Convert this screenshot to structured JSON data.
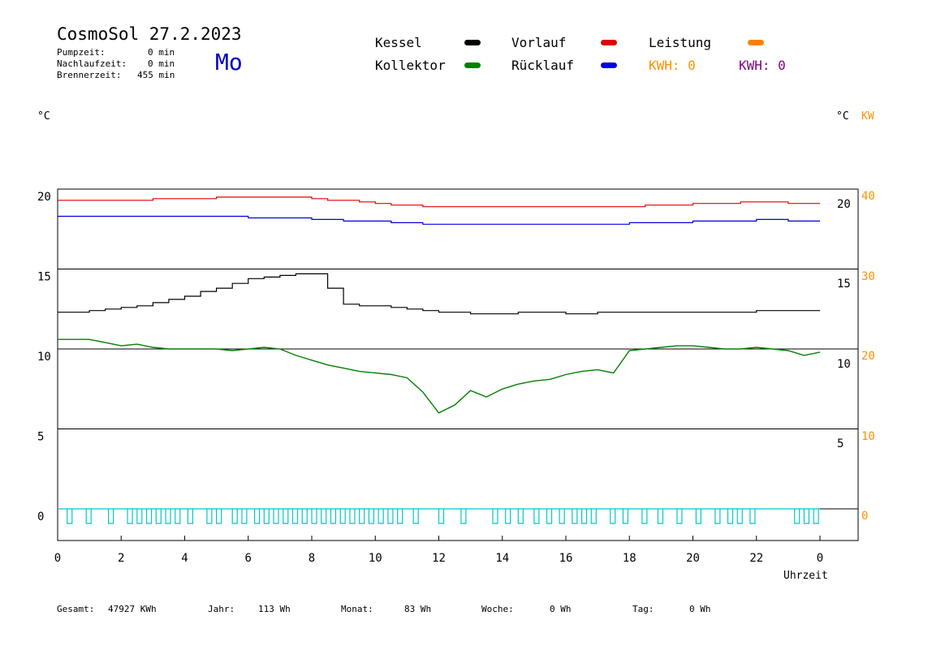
{
  "header": {
    "title": "CosmoSol 27.2.2023",
    "weekday": "Mo",
    "stats": [
      {
        "label": "Pumpzeit:",
        "value": "0 min"
      },
      {
        "label": "Nachlaufzeit:",
        "value": "0 min"
      },
      {
        "label": "Brennerzeit:",
        "value": "455 min"
      }
    ]
  },
  "legend": {
    "kessel": "Kessel",
    "kollektor": "Kollektor",
    "vorlauf": "Vorlauf",
    "ruecklauf": "Rücklauf",
    "leistung": "Leistung",
    "kwh_orange": "KWH: 0",
    "kwh_purple": "KWH: 0"
  },
  "axis_units": {
    "left": "°C",
    "right_c": "°C",
    "right_kw": "KW",
    "x": "Uhrzeit"
  },
  "footer": [
    {
      "label": "Gesamt:",
      "value": "47927 KWh"
    },
    {
      "label": "Jahr:",
      "value": "113 Wh"
    },
    {
      "label": "Monat:",
      "value": "83 Wh"
    },
    {
      "label": "Woche:",
      "value": "0 Wh"
    },
    {
      "label": "Tag:",
      "value": "0 Wh"
    }
  ],
  "colors": {
    "kessel": "#000000",
    "kollektor": "#008000",
    "vorlauf": "#e00000",
    "ruecklauf": "#0000e0",
    "leistung": "#ff8000",
    "kwh_purple": "#800080",
    "pump": "#00c8c8",
    "orange_text": "#ff9000"
  },
  "chart_data": {
    "type": "line",
    "xlabel": "Uhrzeit",
    "ylabel": "°C",
    "x_ticks": [
      "0",
      "2",
      "4",
      "6",
      "8",
      "10",
      "12",
      "14",
      "16",
      "18",
      "20",
      "22",
      "0"
    ],
    "y_left_ticks": [
      "20",
      "15",
      "10",
      "5",
      "0"
    ],
    "y_right_c_ticks": [
      "20",
      "15",
      "10",
      "5"
    ],
    "y_right_kw_ticks": [
      "40",
      "30",
      "20",
      "10",
      "0"
    ],
    "xlim": [
      0,
      24
    ],
    "ylim": [
      -1.5,
      20
    ],
    "grid": true,
    "x": [
      0,
      0.5,
      1,
      1.5,
      2,
      2.5,
      3,
      3.5,
      4,
      4.5,
      5,
      5.5,
      6,
      6.5,
      7,
      7.5,
      8,
      8.5,
      9,
      9.5,
      10,
      10.5,
      11,
      11.5,
      12,
      12.5,
      13,
      13.5,
      14,
      14.5,
      15,
      15.5,
      16,
      16.5,
      17,
      17.5,
      18,
      18.5,
      19,
      19.5,
      20,
      20.5,
      21,
      21.5,
      22,
      22.5,
      23,
      23.5,
      24
    ],
    "series": [
      {
        "name": "Vorlauf",
        "values": [
          19.3,
          19.3,
          19.3,
          19.3,
          19.3,
          19.3,
          19.4,
          19.4,
          19.4,
          19.4,
          19.5,
          19.5,
          19.5,
          19.5,
          19.5,
          19.5,
          19.4,
          19.3,
          19.3,
          19.2,
          19.1,
          19.0,
          19.0,
          18.9,
          18.9,
          18.9,
          18.9,
          18.9,
          18.9,
          18.9,
          18.9,
          18.9,
          18.9,
          18.9,
          18.9,
          18.9,
          18.9,
          19.0,
          19.0,
          19.0,
          19.1,
          19.1,
          19.1,
          19.2,
          19.2,
          19.2,
          19.1,
          19.1,
          19.1
        ]
      },
      {
        "name": "Rücklauf",
        "values": [
          18.3,
          18.3,
          18.3,
          18.3,
          18.3,
          18.3,
          18.3,
          18.3,
          18.3,
          18.3,
          18.3,
          18.3,
          18.2,
          18.2,
          18.2,
          18.2,
          18.1,
          18.1,
          18.0,
          18.0,
          18.0,
          17.9,
          17.9,
          17.8,
          17.8,
          17.8,
          17.8,
          17.8,
          17.8,
          17.8,
          17.8,
          17.8,
          17.8,
          17.8,
          17.8,
          17.8,
          17.9,
          17.9,
          17.9,
          17.9,
          18.0,
          18.0,
          18.0,
          18.0,
          18.1,
          18.1,
          18.0,
          18.0,
          18.0
        ]
      },
      {
        "name": "Kessel",
        "values": [
          12.3,
          12.3,
          12.4,
          12.5,
          12.6,
          12.7,
          12.9,
          13.1,
          13.3,
          13.6,
          13.8,
          14.1,
          14.4,
          14.5,
          14.6,
          14.7,
          14.7,
          13.8,
          12.8,
          12.7,
          12.7,
          12.6,
          12.5,
          12.4,
          12.3,
          12.3,
          12.2,
          12.2,
          12.2,
          12.3,
          12.3,
          12.3,
          12.2,
          12.2,
          12.3,
          12.3,
          12.3,
          12.3,
          12.3,
          12.3,
          12.3,
          12.3,
          12.3,
          12.3,
          12.4,
          12.4,
          12.4,
          12.4,
          12.4
        ]
      },
      {
        "name": "Kollektor",
        "values": [
          10.6,
          10.6,
          10.6,
          10.4,
          10.2,
          10.3,
          10.1,
          10.0,
          10.0,
          10.0,
          10.0,
          9.9,
          10.0,
          10.1,
          10.0,
          9.6,
          9.3,
          9.0,
          8.8,
          8.6,
          8.5,
          8.4,
          8.2,
          7.3,
          6.0,
          6.5,
          7.4,
          7.0,
          7.5,
          7.8,
          8.0,
          8.1,
          8.4,
          8.6,
          8.7,
          8.5,
          9.9,
          10.0,
          10.1,
          10.2,
          10.2,
          10.1,
          10.0,
          10.0,
          10.1,
          10.0,
          9.9,
          9.6,
          9.8
        ]
      },
      {
        "name": "Leistung",
        "values": [
          -0.5,
          -0.5,
          -0.5,
          -0.5,
          -0.5,
          -0.5,
          -0.5,
          -0.5,
          -0.5,
          -0.5,
          -0.5,
          -0.5,
          -0.5,
          -0.5,
          -0.5,
          -0.5,
          -0.5,
          -0.5,
          -0.5,
          -0.5,
          -0.5,
          -0.5,
          -0.5,
          -0.5,
          -0.5,
          -0.5,
          -0.5,
          -0.5,
          -0.5,
          -0.5,
          -0.5,
          -0.5,
          -0.5,
          -0.5,
          -0.5,
          -0.5,
          -0.5,
          -0.5,
          -0.5,
          -0.5,
          -0.5,
          -0.5,
          -0.5,
          -0.5,
          -0.5,
          -0.5,
          -0.5,
          -0.5,
          -0.5
        ]
      }
    ]
  }
}
